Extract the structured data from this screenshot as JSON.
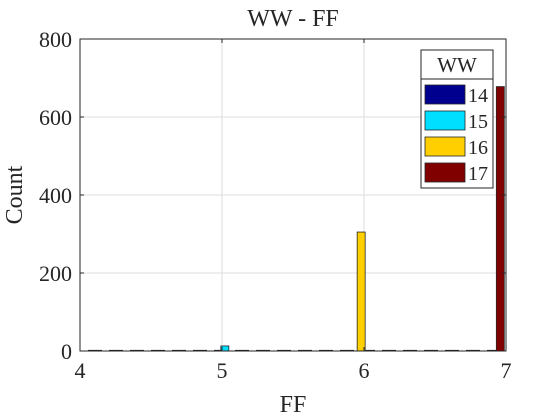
{
  "chart_data": {
    "type": "bar",
    "title": "WW - FF",
    "xlabel": "FF",
    "ylabel": "Count",
    "xlim": [
      4,
      7
    ],
    "ylim": [
      0,
      800
    ],
    "xticks": [
      "4",
      "5",
      "6",
      "7"
    ],
    "yticks": [
      "0",
      "200",
      "400",
      "600",
      "800"
    ],
    "grid": true,
    "legend": {
      "title": "WW",
      "placement": "top-right",
      "entries": [
        "14",
        "15",
        "16",
        "17"
      ]
    },
    "series": [
      {
        "name": "14",
        "color": "#00008f",
        "points": [
          {
            "x": 4.0,
            "y": 0
          }
        ]
      },
      {
        "name": "15",
        "color": "#00dfff",
        "points": [
          {
            "x": 5.02,
            "y": 13
          }
        ]
      },
      {
        "name": "16",
        "color": "#ffcf00",
        "points": [
          {
            "x": 5.98,
            "y": 305
          }
        ]
      },
      {
        "name": "17",
        "color": "#800000",
        "points": [
          {
            "x": 6.96,
            "y": 678
          }
        ]
      }
    ]
  }
}
